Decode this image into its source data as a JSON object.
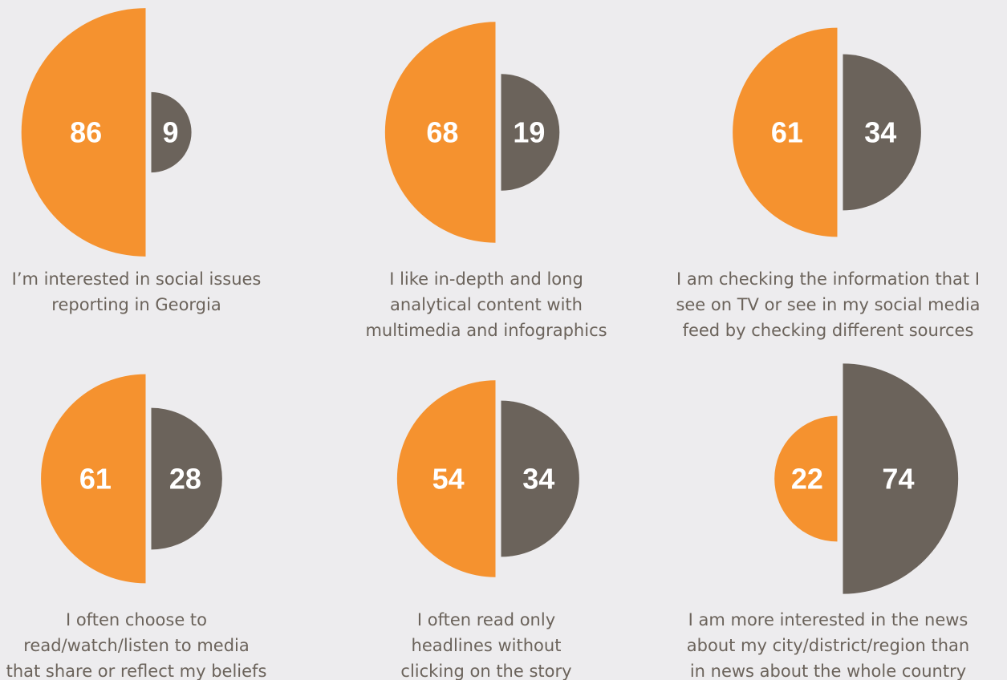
{
  "chart_data": [
    {
      "type": "split-semicircle",
      "values": [
        86,
        9
      ],
      "colors": [
        "#f5922f",
        "#6b635b"
      ],
      "caption": [
        "I’m interested in social issues",
        "reporting in Georgia"
      ]
    },
    {
      "type": "split-semicircle",
      "values": [
        68,
        19
      ],
      "colors": [
        "#f5922f",
        "#6b635b"
      ],
      "caption": [
        "I like in-depth and long",
        "analytical content with",
        "multimedia and infographics"
      ]
    },
    {
      "type": "split-semicircle",
      "values": [
        61,
        34
      ],
      "colors": [
        "#f5922f",
        "#6b635b"
      ],
      "caption": [
        "I am checking the information that I",
        "see on TV or see in my social media",
        "feed by checking different sources"
      ]
    },
    {
      "type": "split-semicircle",
      "values": [
        61,
        28
      ],
      "colors": [
        "#f5922f",
        "#6b635b"
      ],
      "caption": [
        "I often choose to",
        "read/watch/listen to media",
        "that share or reflect my beliefs"
      ]
    },
    {
      "type": "split-semicircle",
      "values": [
        54,
        34
      ],
      "colors": [
        "#f5922f",
        "#6b635b"
      ],
      "caption": [
        "I often read only",
        "headlines without",
        "clicking on the story"
      ]
    },
    {
      "type": "split-semicircle",
      "values": [
        22,
        74
      ],
      "colors": [
        "#f5922f",
        "#6b635b"
      ],
      "caption": [
        "I am more interested in the news",
        "about my city/district/region than",
        "in news about the whole country"
      ]
    }
  ]
}
